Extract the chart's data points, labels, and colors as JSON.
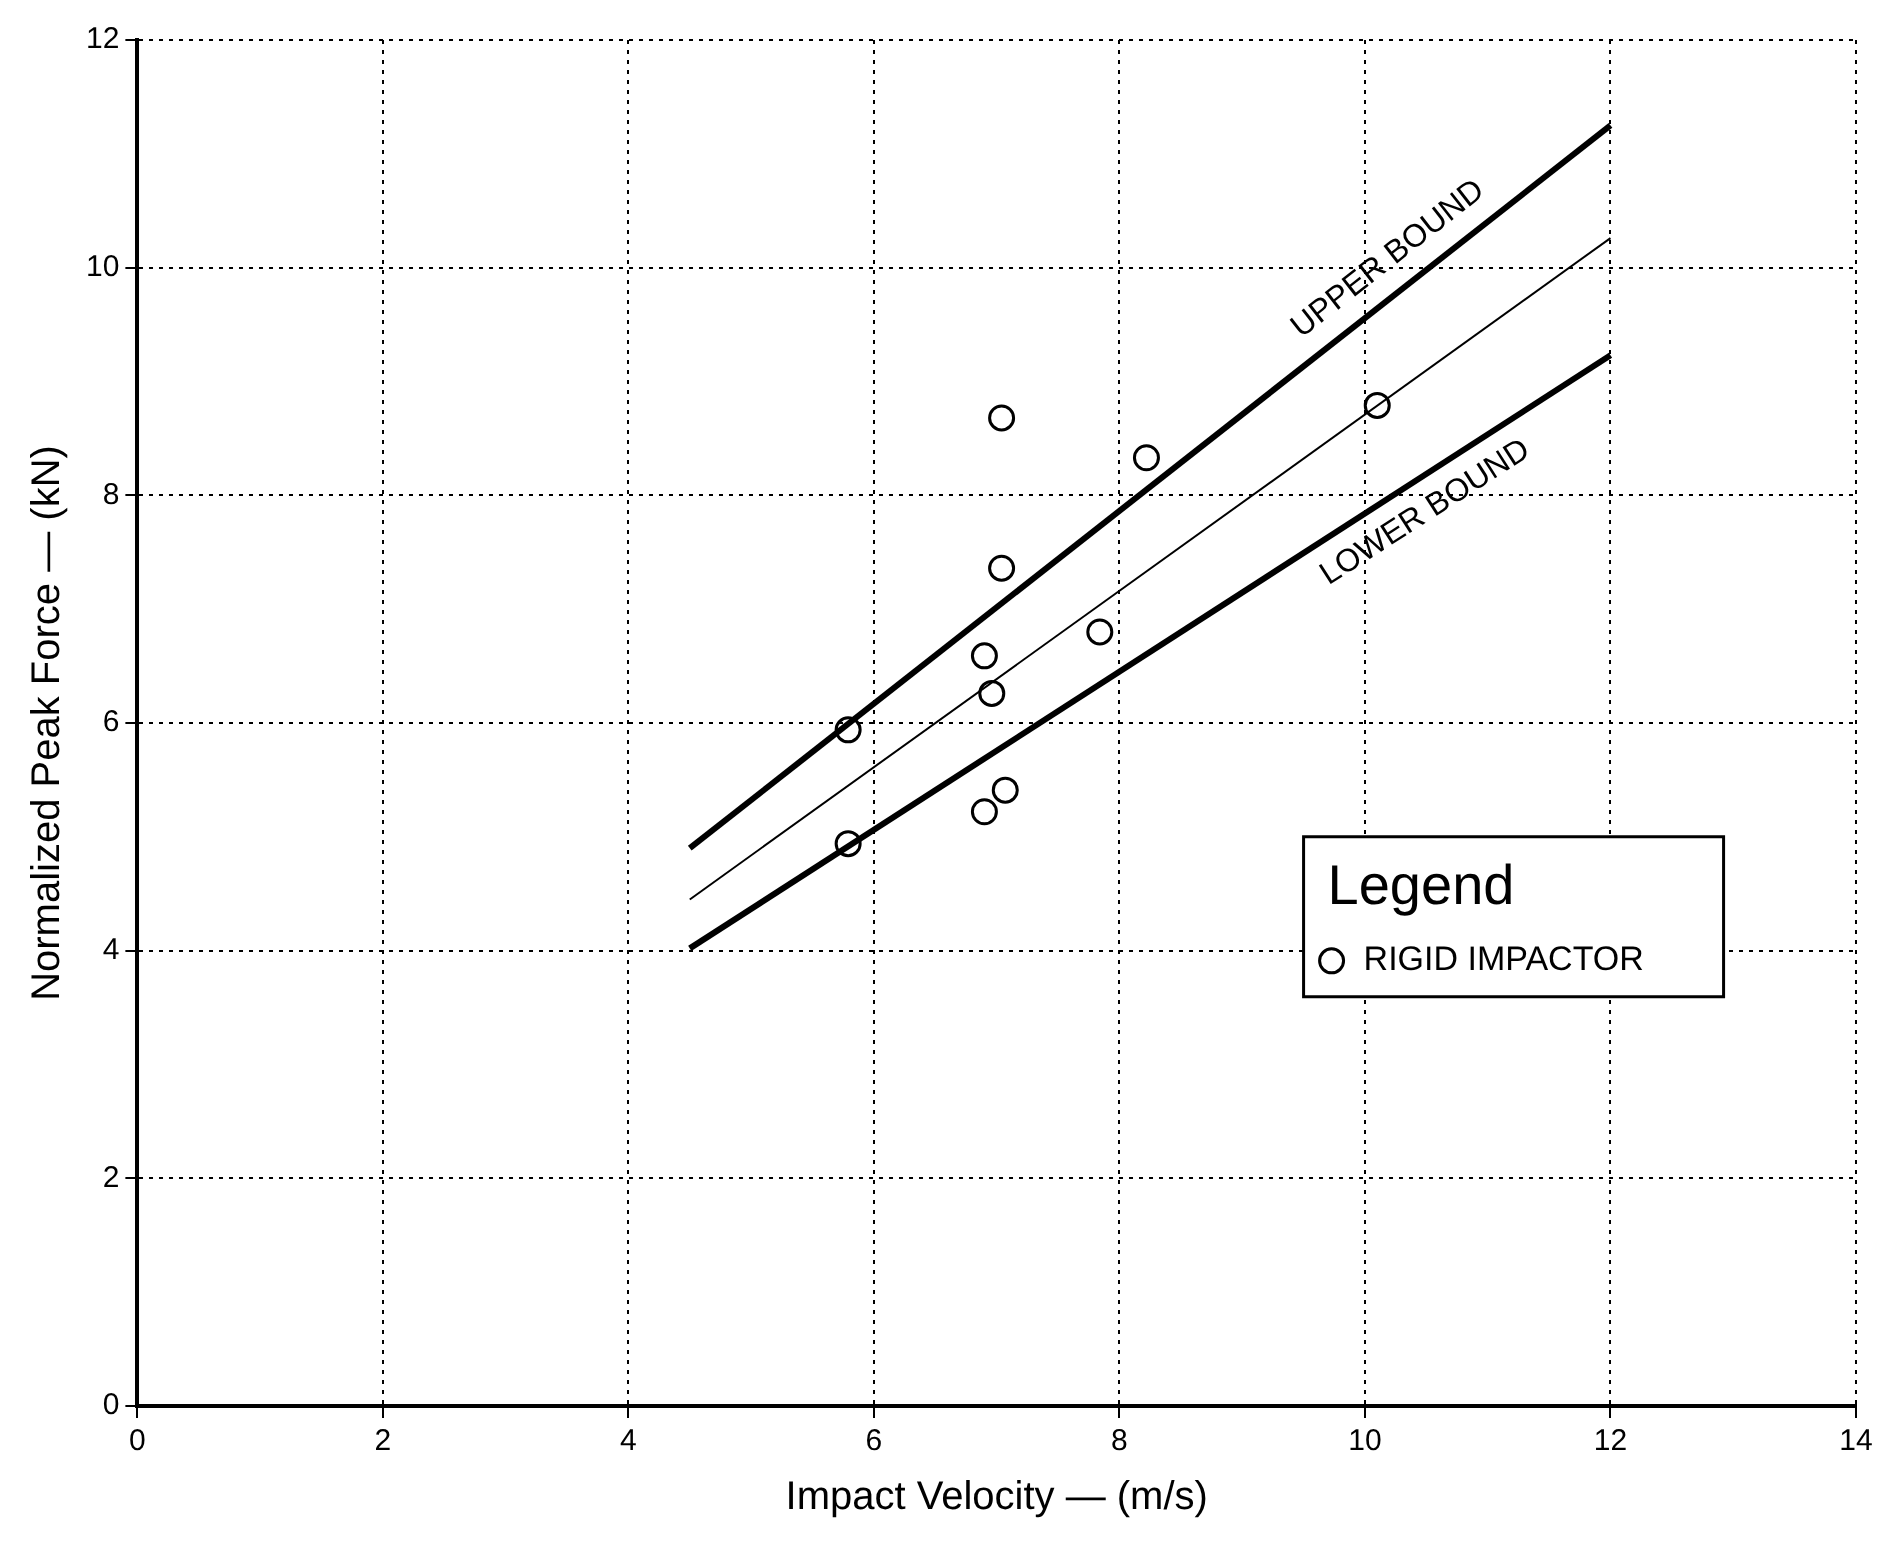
{
  "chart_data": {
    "type": "scatter",
    "xlabel": "Impact Velocity — (m/s)",
    "ylabel": "Normalized Peak Force — (kN)",
    "xlim": [
      0,
      14
    ],
    "xticks": [
      0,
      2,
      4,
      6,
      8,
      10,
      12,
      14
    ],
    "ylim": [
      0,
      12
    ],
    "yticks": [
      0,
      2,
      4,
      6,
      8,
      10,
      12
    ],
    "grid": true,
    "legend": "right",
    "legend_title": "Legend",
    "series": [
      {
        "name": "RIGID IMPACTOR",
        "marker": "circle",
        "color": "#000000",
        "x": [
          5.79,
          5.79,
          7.04,
          7.04,
          6.9,
          6.96,
          6.9,
          7.07,
          7.84,
          8.22,
          10.1
        ],
        "values": [
          5.94,
          4.94,
          8.68,
          7.36,
          6.59,
          6.26,
          5.22,
          5.41,
          6.8,
          8.33,
          8.79
        ]
      },
      {
        "name": "UPPER BOUND",
        "type": "line",
        "marker": "none",
        "color": "#000000",
        "x": [
          4.5,
          12
        ],
        "values": [
          4.9,
          11.25
        ]
      },
      {
        "type": "line",
        "marker": "none",
        "color": "#000000",
        "x": [
          4.5,
          12
        ],
        "values": [
          4.45,
          10.26
        ]
      },
      {
        "name": "LOWER BOUND",
        "type": "line",
        "marker": "none",
        "color": "#000000",
        "x": [
          4.5,
          12
        ],
        "values": [
          4.02,
          9.23
        ]
      }
    ]
  }
}
